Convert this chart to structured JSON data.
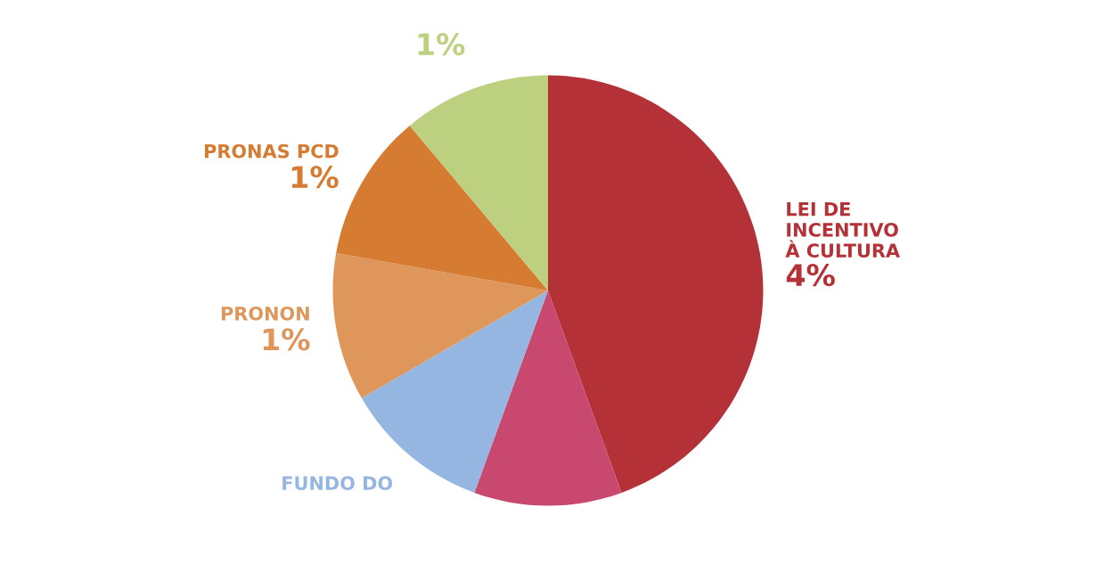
{
  "chart_data": {
    "type": "pie",
    "categories": [
      "LEI DE\nINCENTIVO\nÀ CULTURA",
      null,
      "FUNDO DO",
      "PRONON",
      "PRONAS PCD",
      null
    ],
    "values": [
      4,
      1,
      1,
      1,
      1,
      1
    ],
    "value_labels": [
      "4%",
      null,
      null,
      "1%",
      "1%",
      "1%"
    ],
    "colors": [
      "#b43237",
      "#c8486f",
      "#96b6e2",
      "#de965a",
      "#d67b32",
      "#bcd07f"
    ]
  }
}
